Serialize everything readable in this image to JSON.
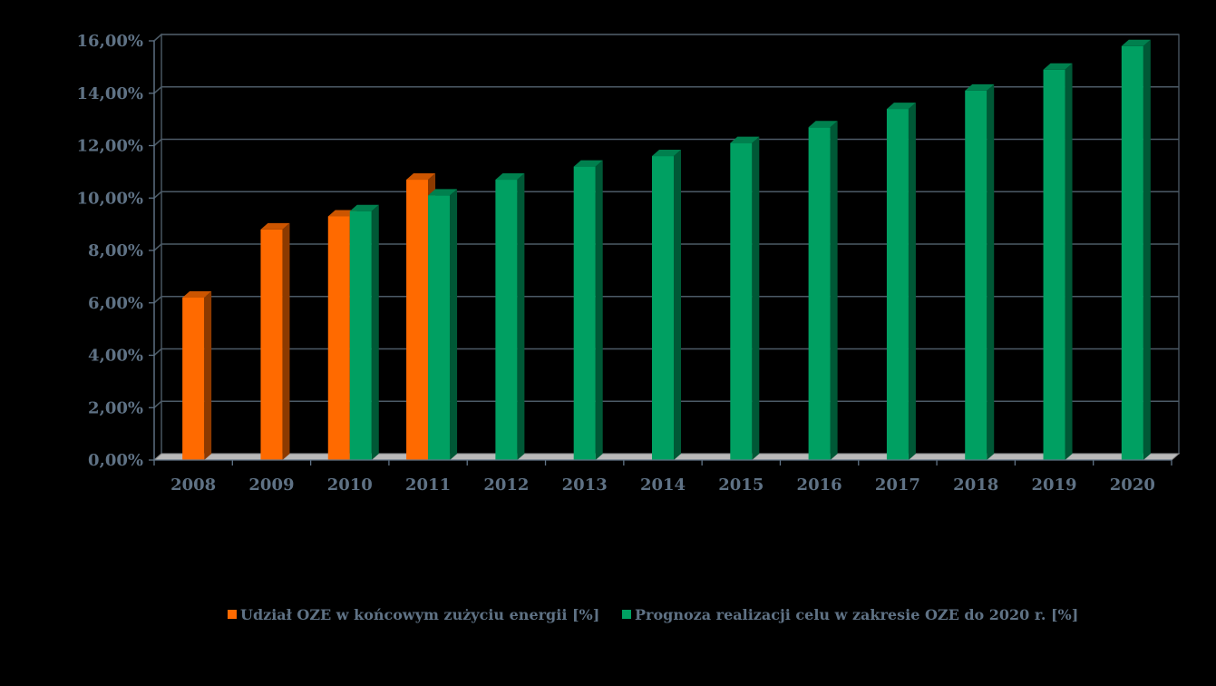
{
  "chart_data": {
    "type": "bar",
    "title": "",
    "xlabel": "",
    "ylabel": "",
    "categories": [
      "2008",
      "2009",
      "2010",
      "2011",
      "2012",
      "2013",
      "2014",
      "2015",
      "2016",
      "2017",
      "2018",
      "2019",
      "2020"
    ],
    "series": [
      {
        "name": "Udział OZE w końcowym zużyciu energii [%]",
        "color": "#ff6a00",
        "values": [
          6.2,
          8.8,
          9.3,
          10.7,
          null,
          null,
          null,
          null,
          null,
          null,
          null,
          null,
          null
        ]
      },
      {
        "name": "Prognoza realizacji celu w zakresie OZE do 2020 r. [%]",
        "color": "#00a062",
        "values": [
          null,
          null,
          9.5,
          10.1,
          10.7,
          11.2,
          11.6,
          12.1,
          12.7,
          13.4,
          14.1,
          14.9,
          15.8
        ]
      }
    ],
    "ylim": [
      0,
      16
    ],
    "y_ticks": [
      "0,00%",
      "2,00%",
      "4,00%",
      "6,00%",
      "8,00%",
      "10,00%",
      "12,00%",
      "14,00%",
      "16,00%"
    ],
    "grid": true,
    "legend_position": "bottom",
    "style": "3d-bar"
  }
}
